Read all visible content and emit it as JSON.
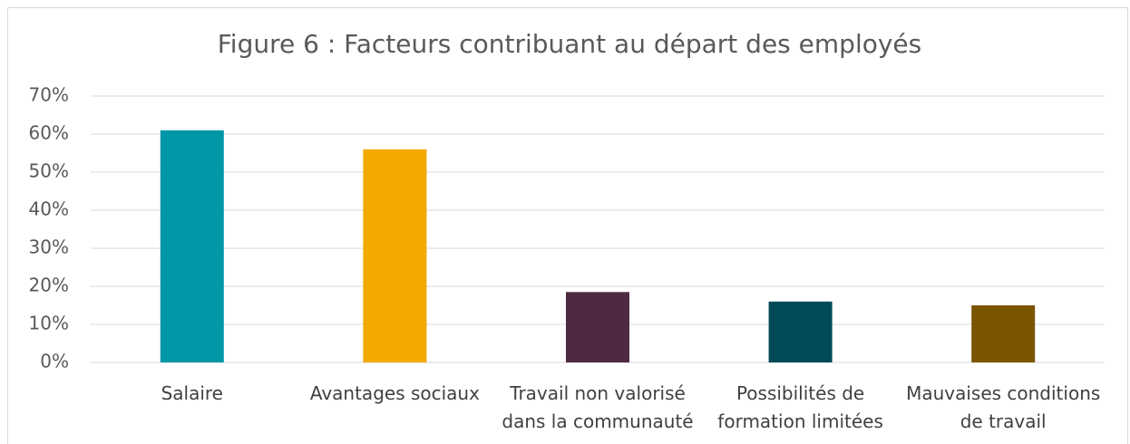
{
  "chart_data": {
    "type": "bar",
    "title": "Figure 6 : Facteurs contribuant au départ des employés",
    "categories": [
      "Salaire",
      "Avantages sociaux",
      "Travail non valorisé dans la communauté",
      "Possibilités de formation limitées",
      "Mauvaises conditions de travail"
    ],
    "values": [
      61,
      56,
      18.5,
      16,
      15
    ],
    "colors": [
      "#0097a7",
      "#f2a900",
      "#4e2a42",
      "#004b57",
      "#7a5500"
    ],
    "ylim": [
      0,
      70
    ],
    "yticks": [
      {
        "value": 0,
        "label": "0%"
      },
      {
        "value": 10,
        "label": "10%"
      },
      {
        "value": 20,
        "label": "20%"
      },
      {
        "value": 30,
        "label": "30%"
      },
      {
        "value": 40,
        "label": "40%"
      },
      {
        "value": 50,
        "label": "50%"
      },
      {
        "value": 60,
        "label": "60%"
      },
      {
        "value": 70,
        "label": "70%"
      }
    ],
    "grid": true
  }
}
